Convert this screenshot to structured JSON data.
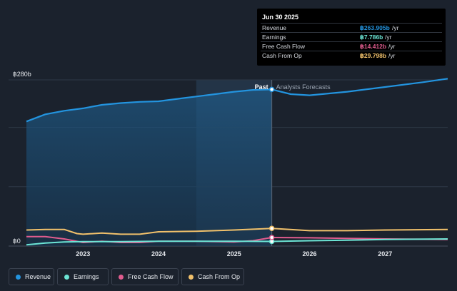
{
  "tooltip": {
    "date": "Jun 30 2025",
    "rows": [
      {
        "label": "Revenue",
        "value": "฿263.905b",
        "unit": "/yr",
        "color": "#2394df"
      },
      {
        "label": "Earnings",
        "value": "฿7.786b",
        "unit": "/yr",
        "color": "#6ce5d5"
      },
      {
        "label": "Free Cash Flow",
        "value": "฿14.412b",
        "unit": "/yr",
        "color": "#e05c8e"
      },
      {
        "label": "Cash From Op",
        "value": "฿29.798b",
        "unit": "/yr",
        "color": "#f1c16b"
      }
    ]
  },
  "chart_data": {
    "type": "area",
    "y_top_label": "฿280b",
    "y_zero_label": "฿0",
    "ylim": [
      0,
      280
    ],
    "xlim": [
      2022.25,
      2027.83
    ],
    "x_ticks": [
      2023,
      2024,
      2025,
      2026,
      2027
    ],
    "x_tick_labels": [
      "2023",
      "2024",
      "2025",
      "2026",
      "2027"
    ],
    "divider_x": 2025.5,
    "past_label": "Past",
    "forecast_label": "Analysts Forecasts",
    "grid": true,
    "series": [
      {
        "name": "Revenue",
        "color": "#2394df",
        "points": [
          [
            2022.25,
            210
          ],
          [
            2022.5,
            222
          ],
          [
            2022.75,
            228
          ],
          [
            2023.0,
            232
          ],
          [
            2023.25,
            238
          ],
          [
            2023.5,
            241
          ],
          [
            2023.75,
            243
          ],
          [
            2024.0,
            244
          ],
          [
            2024.25,
            248
          ],
          [
            2024.5,
            252
          ],
          [
            2024.75,
            256
          ],
          [
            2025.0,
            260
          ],
          [
            2025.25,
            263
          ],
          [
            2025.5,
            263.905
          ],
          [
            2025.75,
            256
          ],
          [
            2026.0,
            254
          ],
          [
            2026.5,
            260
          ],
          [
            2027.0,
            268
          ],
          [
            2027.5,
            276
          ],
          [
            2027.83,
            282
          ]
        ]
      },
      {
        "name": "Earnings",
        "color": "#6ce5d5",
        "points": [
          [
            2022.25,
            2
          ],
          [
            2022.5,
            5
          ],
          [
            2022.75,
            7
          ],
          [
            2023.0,
            7.5
          ],
          [
            2023.5,
            7.5
          ],
          [
            2024.0,
            8
          ],
          [
            2024.5,
            8
          ],
          [
            2025.0,
            8
          ],
          [
            2025.5,
            7.786
          ],
          [
            2026.0,
            9
          ],
          [
            2026.5,
            10
          ],
          [
            2027.0,
            11
          ],
          [
            2027.83,
            12
          ]
        ]
      },
      {
        "name": "Free Cash Flow",
        "color": "#e05c8e",
        "points": [
          [
            2022.25,
            16
          ],
          [
            2022.5,
            16
          ],
          [
            2022.75,
            12
          ],
          [
            2023.0,
            6
          ],
          [
            2023.25,
            8
          ],
          [
            2023.5,
            6
          ],
          [
            2023.75,
            6
          ],
          [
            2024.0,
            8
          ],
          [
            2024.5,
            8
          ],
          [
            2025.0,
            7
          ],
          [
            2025.25,
            9
          ],
          [
            2025.5,
            14.412
          ],
          [
            2026.0,
            14
          ],
          [
            2026.5,
            13
          ],
          [
            2027.0,
            12
          ],
          [
            2027.83,
            11
          ]
        ]
      },
      {
        "name": "Cash From Op",
        "color": "#f1c16b",
        "points": [
          [
            2022.25,
            27
          ],
          [
            2022.5,
            28
          ],
          [
            2022.75,
            28
          ],
          [
            2022.92,
            21
          ],
          [
            2023.0,
            20
          ],
          [
            2023.25,
            22
          ],
          [
            2023.5,
            20
          ],
          [
            2023.75,
            20
          ],
          [
            2024.0,
            24
          ],
          [
            2024.5,
            25
          ],
          [
            2025.0,
            27
          ],
          [
            2025.5,
            29.798
          ],
          [
            2026.0,
            26
          ],
          [
            2026.5,
            26
          ],
          [
            2027.0,
            27
          ],
          [
            2027.83,
            28
          ]
        ]
      }
    ]
  },
  "legend": [
    {
      "label": "Revenue",
      "color": "#2394df"
    },
    {
      "label": "Earnings",
      "color": "#6ce5d5"
    },
    {
      "label": "Free Cash Flow",
      "color": "#e05c8e"
    },
    {
      "label": "Cash From Op",
      "color": "#f1c16b"
    }
  ]
}
